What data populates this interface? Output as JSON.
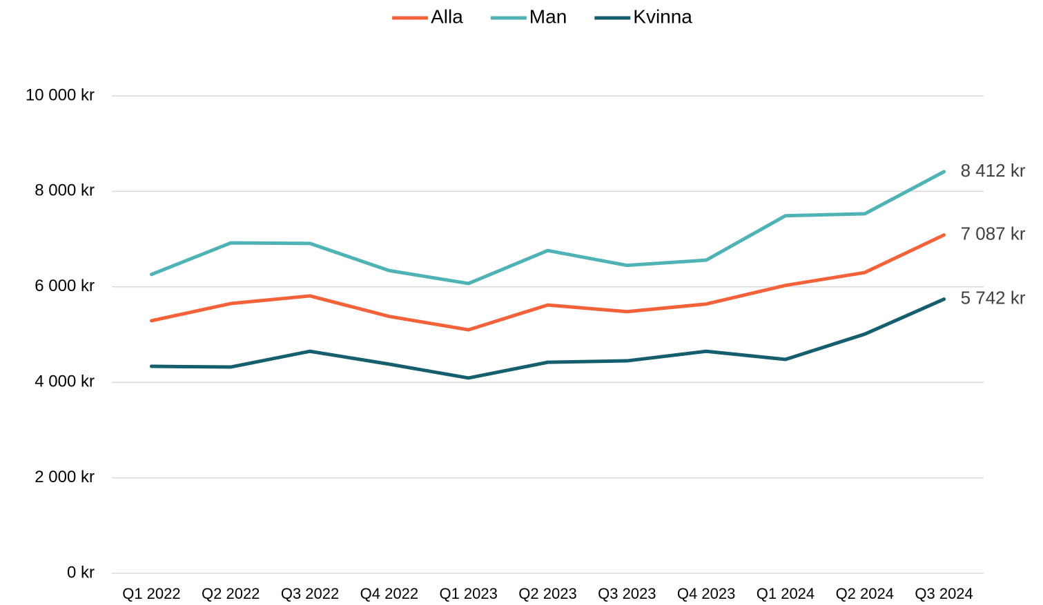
{
  "chart_data": {
    "type": "line",
    "categories": [
      "Q1 2022",
      "Q2 2022",
      "Q3 2022",
      "Q4 2022",
      "Q1 2023",
      "Q2 2023",
      "Q3 2023",
      "Q4 2023",
      "Q1 2024",
      "Q2 2024",
      "Q3 2024"
    ],
    "series": [
      {
        "name": "Alla",
        "color": "#f4623a",
        "values": [
          5290,
          5650,
          5810,
          5380,
          5100,
          5620,
          5480,
          5640,
          6030,
          6300,
          7087
        ],
        "value_labels": [
          null,
          null,
          null,
          null,
          null,
          null,
          null,
          null,
          null,
          null,
          "7 087 kr"
        ]
      },
      {
        "name": "Man",
        "color": "#4fb3b5",
        "values": [
          6260,
          6920,
          6910,
          6340,
          6070,
          6760,
          6450,
          6560,
          7490,
          7530,
          8412
        ],
        "value_labels": [
          null,
          null,
          null,
          null,
          null,
          null,
          null,
          null,
          null,
          null,
          "8 412 kr"
        ]
      },
      {
        "name": "Kvinna",
        "color": "#155e6e",
        "values": [
          4335,
          4320,
          4650,
          4380,
          4090,
          4420,
          4450,
          4650,
          4480,
          5010,
          5742
        ],
        "value_labels": [
          null,
          null,
          null,
          null,
          null,
          null,
          null,
          null,
          null,
          null,
          "5 742 kr"
        ]
      }
    ],
    "ylim": [
      0,
      10000
    ],
    "yticks": [
      {
        "value": 0,
        "label": "0 kr"
      },
      {
        "value": 2000,
        "label": "2 000 kr"
      },
      {
        "value": 4000,
        "label": "4 000 kr"
      },
      {
        "value": 6000,
        "label": "6 000 kr"
      },
      {
        "value": 8000,
        "label": "8 000 kr"
      },
      {
        "value": 10000,
        "label": "10 000 kr"
      }
    ],
    "grid": true,
    "legend": "top"
  }
}
